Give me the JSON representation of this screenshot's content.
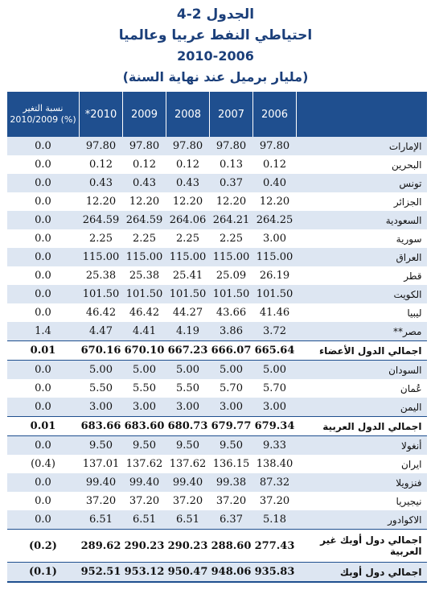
{
  "title": {
    "line1": "الجدول 2-4",
    "line2": "احتياطي النفط عربيا وعالميا",
    "line3": "2010-2006",
    "line4": "(مليار برميل عند نهاية السنة)"
  },
  "table": {
    "headers": [
      "نسبة التغير 2010/2009 (%)",
      "*2010",
      "2009",
      "2008",
      "2007",
      "2006",
      ""
    ],
    "rows": [
      {
        "country": "الإمارات",
        "values": [
          "0.0",
          "97.80",
          "97.80",
          "97.80",
          "97.80",
          "97.80"
        ],
        "total": false
      },
      {
        "country": "البحرين",
        "values": [
          "0.0",
          "0.12",
          "0.12",
          "0.12",
          "0.13",
          "0.12"
        ],
        "total": false
      },
      {
        "country": "تونس",
        "values": [
          "0.0",
          "0.43",
          "0.43",
          "0.43",
          "0.37",
          "0.40"
        ],
        "total": false
      },
      {
        "country": "الجزائر",
        "values": [
          "0.0",
          "12.20",
          "12.20",
          "12.20",
          "12.20",
          "12.20"
        ],
        "total": false
      },
      {
        "country": "السعودية",
        "values": [
          "0.0",
          "264.59",
          "264.59",
          "264.06",
          "264.21",
          "264.25"
        ],
        "total": false
      },
      {
        "country": "سورية",
        "values": [
          "0.0",
          "2.25",
          "2.25",
          "2.25",
          "2.25",
          "3.00"
        ],
        "total": false
      },
      {
        "country": "العراق",
        "values": [
          "0.0",
          "115.00",
          "115.00",
          "115.00",
          "115.00",
          "115.00"
        ],
        "total": false
      },
      {
        "country": "قطر",
        "values": [
          "0.0",
          "25.38",
          "25.38",
          "25.41",
          "25.09",
          "26.19"
        ],
        "total": false
      },
      {
        "country": "الكويت",
        "values": [
          "0.0",
          "101.50",
          "101.50",
          "101.50",
          "101.50",
          "101.50"
        ],
        "total": false
      },
      {
        "country": "ليبيا",
        "values": [
          "0.0",
          "46.42",
          "46.42",
          "44.27",
          "43.66",
          "41.46"
        ],
        "total": false
      },
      {
        "country": "مصر**",
        "values": [
          "1.4",
          "4.47",
          "4.41",
          "4.19",
          "3.86",
          "3.72"
        ],
        "total": false
      },
      {
        "country": "اجمالي الدول الأعضاء",
        "values": [
          "0.01",
          "670.16",
          "670.10",
          "667.23",
          "666.07",
          "665.64"
        ],
        "total": true
      },
      {
        "country": "السودان",
        "values": [
          "0.0",
          "5.00",
          "5.00",
          "5.00",
          "5.00",
          "5.00"
        ],
        "total": false
      },
      {
        "country": "عُمان",
        "values": [
          "0.0",
          "5.50",
          "5.50",
          "5.50",
          "5.70",
          "5.70"
        ],
        "total": false
      },
      {
        "country": "اليمن",
        "values": [
          "0.0",
          "3.00",
          "3.00",
          "3.00",
          "3.00",
          "3.00"
        ],
        "total": false
      },
      {
        "country": "اجمالي الدول العربية",
        "values": [
          "0.01",
          "683.66",
          "683.60",
          "680.73",
          "679.77",
          "679.34"
        ],
        "total": true
      },
      {
        "country": "أنغولا",
        "values": [
          "0.0",
          "9.50",
          "9.50",
          "9.50",
          "9.50",
          "9.33"
        ],
        "total": false
      },
      {
        "country": "ايران",
        "values": [
          "(0.4)",
          "137.01",
          "137.62",
          "137.62",
          "136.15",
          "138.40"
        ],
        "total": false
      },
      {
        "country": "فنزويلا",
        "values": [
          "0.0",
          "99.40",
          "99.40",
          "99.40",
          "99.38",
          "87.32"
        ],
        "total": false
      },
      {
        "country": "نيجيريا",
        "values": [
          "0.0",
          "37.20",
          "37.20",
          "37.20",
          "37.20",
          "37.20"
        ],
        "total": false
      },
      {
        "country": "الاكوادور",
        "values": [
          "0.0",
          "6.51",
          "6.51",
          "6.51",
          "6.37",
          "5.18"
        ],
        "total": false
      },
      {
        "country": "اجمالي دول أوبك غير العربية",
        "values": [
          "(0.2)",
          "289.62",
          "290.23",
          "290.23",
          "288.60",
          "277.43"
        ],
        "total": true
      },
      {
        "country": "اجمالي دول أوبك",
        "values": [
          "(0.1)",
          "952.51",
          "953.12",
          "950.47",
          "948.06",
          "935.83"
        ],
        "total": true
      }
    ]
  },
  "colors": {
    "header_bg": "#1f4f8f",
    "stripe": "#dde6f2",
    "title": "#1b3f7a"
  }
}
